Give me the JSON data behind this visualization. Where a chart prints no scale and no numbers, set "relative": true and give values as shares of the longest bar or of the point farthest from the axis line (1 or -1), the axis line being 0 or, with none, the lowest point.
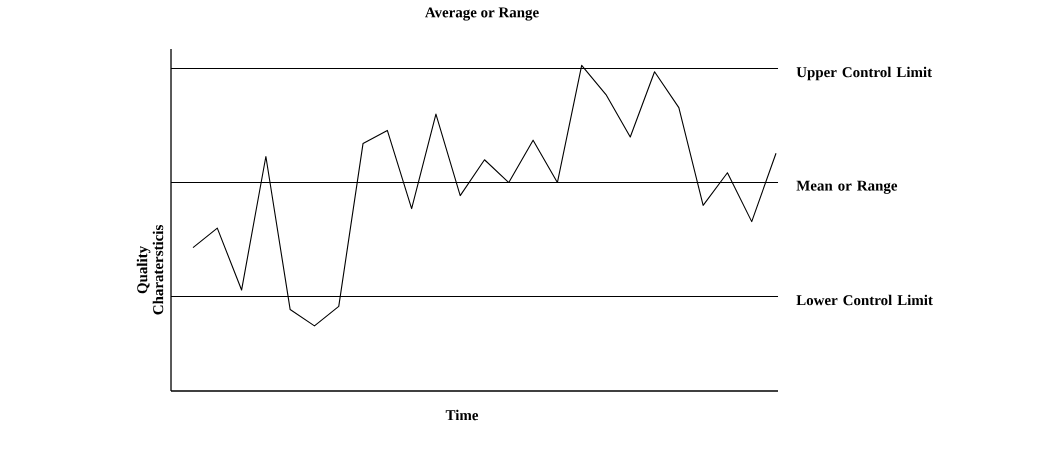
{
  "chart_data": {
    "type": "line",
    "title": "Average or Range",
    "xlabel": "Time",
    "ylabel": "Quality Charatersticis",
    "relative": true,
    "categories": [
      null,
      null,
      null,
      null,
      null,
      null,
      null,
      null,
      null,
      null,
      null,
      null,
      null,
      null,
      null,
      null,
      null,
      null,
      null,
      null,
      null,
      null,
      null,
      null,
      null
    ],
    "series": [
      {
        "color": "#000000",
        "values": [
          0.44,
          0.5,
          0.31,
          0.72,
          0.25,
          0.2,
          0.26,
          0.76,
          0.8,
          0.56,
          0.85,
          0.6,
          0.71,
          0.64,
          0.77,
          0.64,
          1.0,
          0.91,
          0.78,
          0.98,
          0.87,
          0.57,
          0.67,
          0.52,
          0.73
        ]
      }
    ],
    "ref_lines": [
      {
        "axis": "y",
        "value": 0.99,
        "label": "Upper Control Limit",
        "color": "#000000"
      },
      {
        "axis": "y",
        "value": 0.64,
        "label": "Mean or Range",
        "color": "#000000"
      },
      {
        "axis": "y",
        "value": 0.29,
        "label": "Lower Control Limit",
        "color": "#000000"
      }
    ],
    "marker": "none",
    "line_style": "solid"
  }
}
